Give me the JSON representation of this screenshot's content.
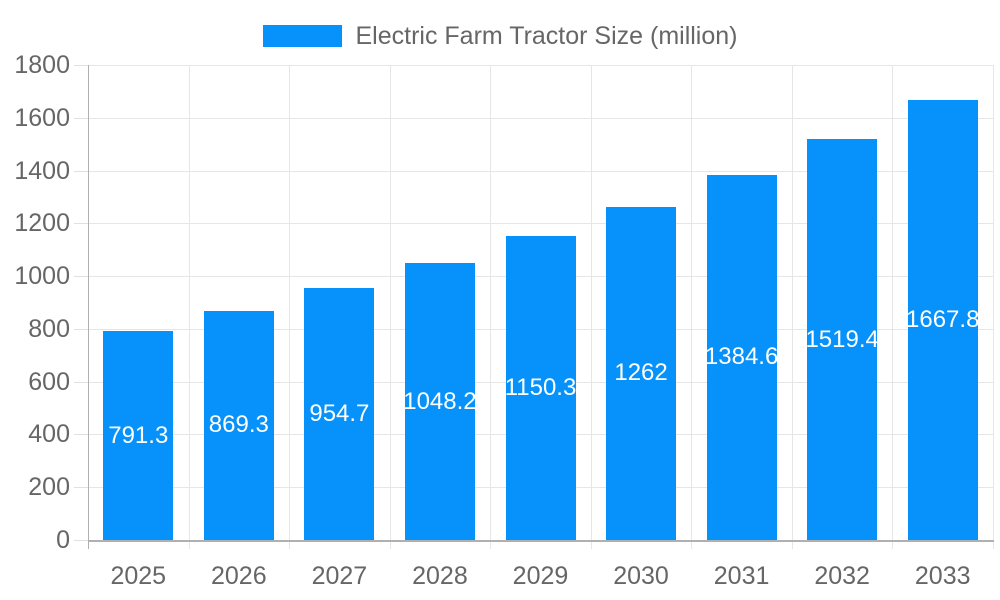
{
  "chart_data": {
    "type": "bar",
    "title": "Electric Farm Tractor Size (million)",
    "categories": [
      "2025",
      "2026",
      "2027",
      "2028",
      "2029",
      "2030",
      "2031",
      "2032",
      "2033"
    ],
    "series": [
      {
        "name": "Electric Farm Tractor Size (million)",
        "values": [
          791.3,
          869.3,
          954.7,
          1048.2,
          1150.3,
          1262,
          1384.6,
          1519.4,
          1667.8
        ]
      }
    ],
    "value_labels": [
      "791.3",
      "869.3",
      "954.7",
      "1048.2",
      "1150.3",
      "1262",
      "1384.6",
      "1519.4",
      "1667.8"
    ],
    "xlabel": "",
    "ylabel": "",
    "ylim": [
      0,
      1800
    ],
    "ytick_step": 200,
    "ytick_labels": [
      "0",
      "200",
      "400",
      "600",
      "800",
      "1000",
      "1200",
      "1400",
      "1600",
      "1800"
    ],
    "grid": true,
    "legend_position": "top-center",
    "value_label_position": "inside-center"
  },
  "colors": {
    "bar": "#0692fa",
    "axis_line": "#b0b0b0",
    "grid_line": "#e6e6e6",
    "tick_line": "#e0e0e0",
    "axis_text": "#666666",
    "value_text": "#ffffff",
    "background": "#ffffff"
  }
}
